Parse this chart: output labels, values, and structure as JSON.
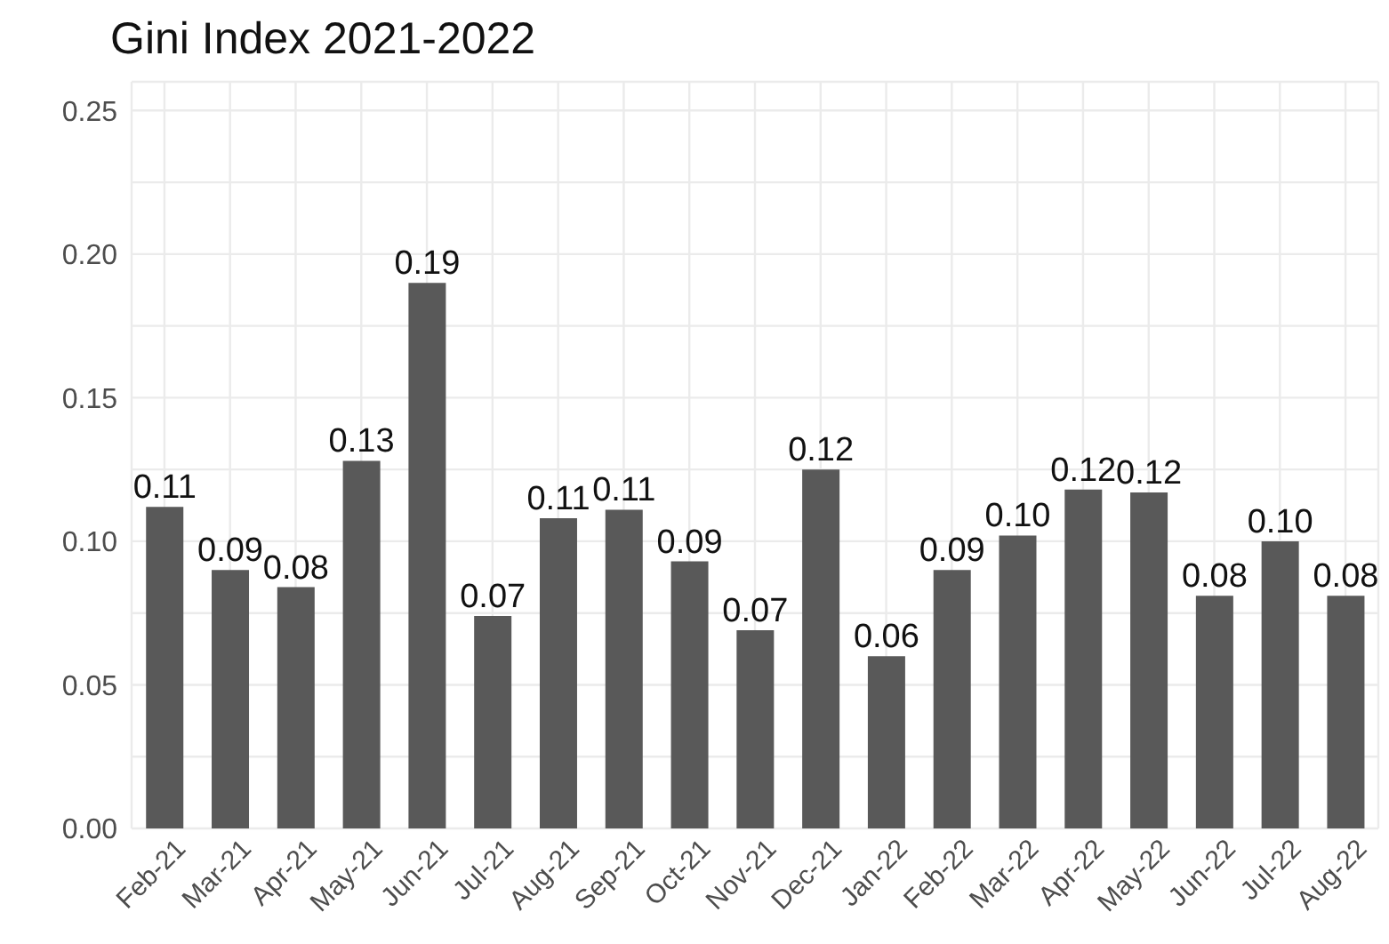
{
  "chart_data": {
    "type": "bar",
    "title": "Gini Index 2021-2022",
    "categories": [
      "Feb-21",
      "Mar-21",
      "Apr-21",
      "May-21",
      "Jun-21",
      "Jul-21",
      "Aug-21",
      "Sep-21",
      "Oct-21",
      "Nov-21",
      "Dec-21",
      "Jan-22",
      "Feb-22",
      "Mar-22",
      "Apr-22",
      "May-22",
      "Jun-22",
      "Jul-22",
      "Aug-22"
    ],
    "values": [
      0.112,
      0.09,
      0.084,
      0.128,
      0.19,
      0.074,
      0.108,
      0.111,
      0.093,
      0.069,
      0.125,
      0.06,
      0.09,
      0.102,
      0.118,
      0.117,
      0.081,
      0.1,
      0.081
    ],
    "value_labels": [
      "0.11",
      "0.09",
      "0.08",
      "0.13",
      "0.19",
      "0.07",
      "0.11",
      "0.11",
      "0.09",
      "0.07",
      "0.12",
      "0.06",
      "0.09",
      "0.10",
      "0.12",
      "0.12",
      "0.08",
      "0.10",
      "0.08"
    ],
    "color": "#595959",
    "ylim": [
      0,
      0.26
    ],
    "yticks": [
      {
        "value": 0,
        "label": "0.00"
      },
      {
        "value": 0.025,
        "label": null
      },
      {
        "value": 0.05,
        "label": "0.05"
      },
      {
        "value": 0.075,
        "label": null
      },
      {
        "value": 0.1,
        "label": "0.10"
      },
      {
        "value": 0.125,
        "label": null
      },
      {
        "value": 0.15,
        "label": "0.15"
      },
      {
        "value": 0.175,
        "label": null
      },
      {
        "value": 0.2,
        "label": "0.20"
      },
      {
        "value": 0.225,
        "label": null
      },
      {
        "value": 0.25,
        "label": "0.25"
      }
    ],
    "grid": true
  }
}
